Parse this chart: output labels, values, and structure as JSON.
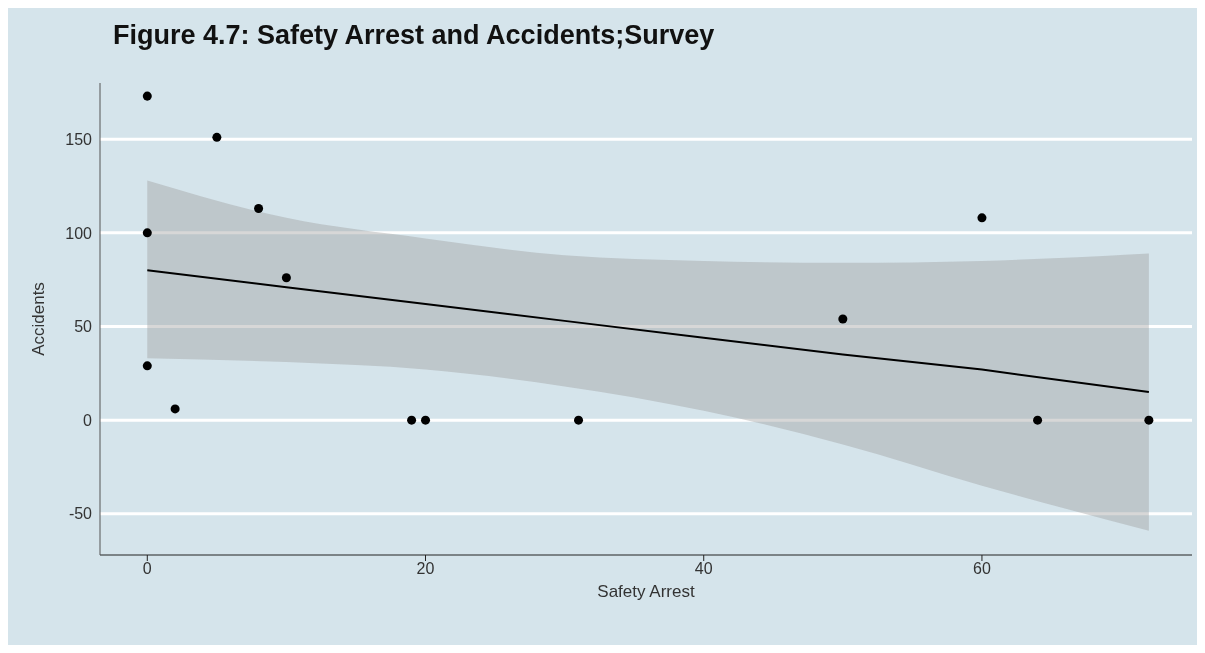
{
  "chart_data": {
    "type": "scatter",
    "title": "Figure 4.7: Safety Arrest and Accidents;Survey",
    "xlabel": "Safety Arrest",
    "ylabel": "Accidents",
    "xlim": [
      -3.4,
      75.1
    ],
    "ylim": [
      -72,
      180
    ],
    "xticks": [
      0,
      20,
      40,
      60
    ],
    "yticks": [
      -50,
      0,
      50,
      100,
      150
    ],
    "grid": "y",
    "legend": false,
    "series": [
      {
        "color": "#000000",
        "marker": "circle",
        "x": [
          0,
          5,
          0,
          8,
          10,
          0,
          2,
          19,
          20,
          31,
          50,
          60,
          64,
          72
        ],
        "values": [
          173,
          151,
          100,
          113,
          76,
          29,
          6,
          0,
          0,
          0,
          54,
          108,
          0,
          0
        ]
      },
      {
        "type": "line",
        "marker": "none",
        "color": "#000000",
        "x": [
          0,
          10,
          20,
          30,
          40,
          50,
          60,
          72
        ],
        "values": [
          80,
          71,
          62,
          53,
          44,
          35,
          27,
          15
        ],
        "lower": [
          33,
          31,
          27,
          18,
          5,
          -13,
          -35,
          -59
        ],
        "upper": [
          128,
          108,
          97,
          88,
          85,
          84,
          85,
          89
        ]
      }
    ]
  }
}
